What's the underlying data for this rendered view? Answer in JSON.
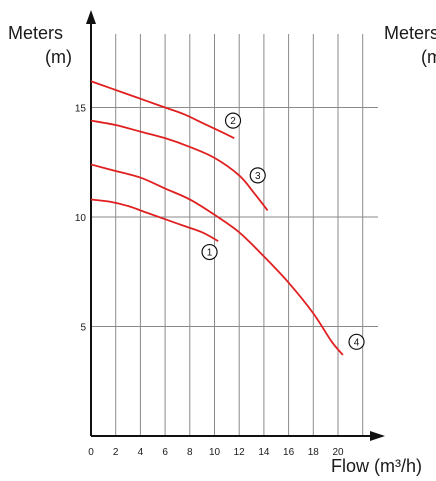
{
  "chart_data": {
    "type": "line",
    "ylabel_left_line1": "Meters",
    "ylabel_left_line2": "(m)",
    "ylabel_right_line1": "Meters",
    "ylabel_right_line2": "(m",
    "xlabel": "Flow (m³/h)",
    "xlim": [
      0,
      23
    ],
    "ylim": [
      0,
      19
    ],
    "x_ticks": [
      0,
      2,
      4,
      6,
      8,
      10,
      12,
      14,
      16,
      18,
      20
    ],
    "y_ticks": [
      5,
      10,
      15
    ],
    "grid_x": [
      2,
      4,
      6,
      8,
      10,
      12,
      14,
      16,
      18,
      20,
      22
    ],
    "grid_y": [
      5,
      10,
      15
    ],
    "series_color": "#e02020",
    "series": [
      {
        "label": "1",
        "label_at": [
          9.6,
          8.4
        ],
        "x": [
          0,
          1.5,
          3,
          4.5,
          6,
          7.5,
          9,
          10.3
        ],
        "y": [
          10.8,
          10.7,
          10.5,
          10.2,
          9.9,
          9.6,
          9.3,
          8.9
        ]
      },
      {
        "label": "2",
        "label_at": [
          11.5,
          14.4
        ],
        "x": [
          0,
          1.5,
          3,
          4.5,
          6,
          7.5,
          9,
          10.5,
          11.6
        ],
        "y": [
          16.2,
          15.9,
          15.6,
          15.3,
          15.0,
          14.7,
          14.3,
          13.9,
          13.6
        ]
      },
      {
        "label": "3",
        "label_at": [
          13.5,
          11.9
        ],
        "x": [
          0,
          2,
          4,
          6,
          8,
          10,
          12,
          13.2,
          14.3
        ],
        "y": [
          14.4,
          14.2,
          13.9,
          13.6,
          13.2,
          12.7,
          11.9,
          11.1,
          10.3
        ]
      },
      {
        "label": "4",
        "label_at": [
          21.5,
          4.3
        ],
        "x": [
          0,
          2,
          4,
          6,
          8,
          10,
          12,
          14,
          16,
          18,
          19.5,
          20.4
        ],
        "y": [
          12.4,
          12.1,
          11.8,
          11.3,
          10.8,
          10.1,
          9.3,
          8.2,
          7.0,
          5.6,
          4.3,
          3.7
        ]
      }
    ]
  }
}
